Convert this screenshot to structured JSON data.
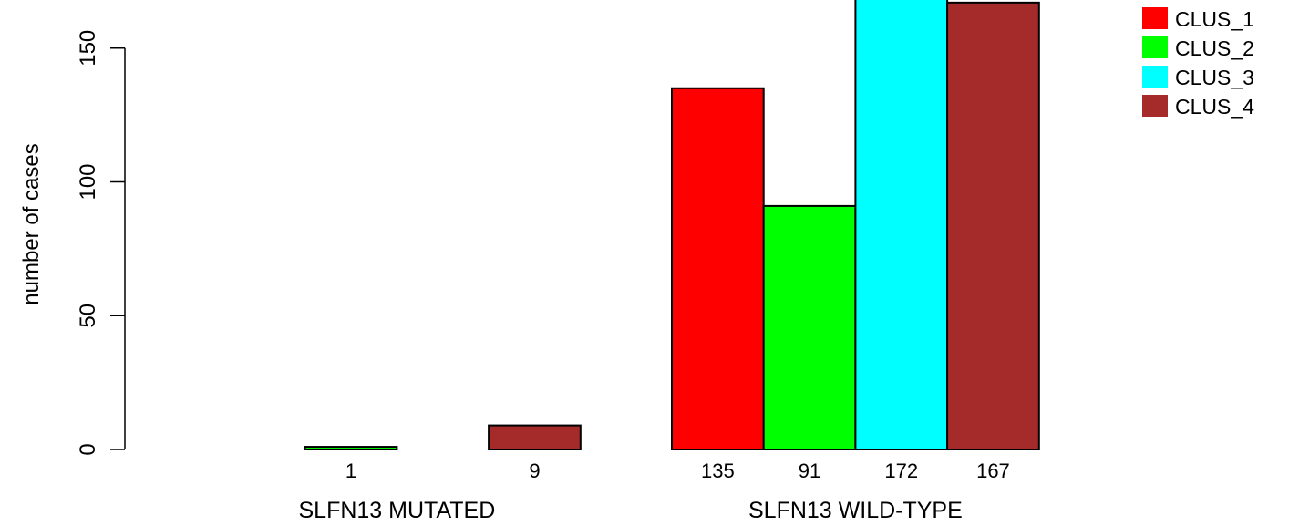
{
  "chart_data": {
    "type": "bar",
    "ylabel": "number of cases",
    "yticks": [
      0,
      50,
      100,
      150
    ],
    "ylim": [
      0,
      172
    ],
    "groups": [
      {
        "label": "SLFN13 MUTATED",
        "values": [
          0,
          1,
          0,
          9
        ],
        "value_labels": [
          "",
          "1",
          "",
          "9"
        ]
      },
      {
        "label": "SLFN13 WILD-TYPE",
        "values": [
          135,
          91,
          172,
          167
        ],
        "value_labels": [
          "135",
          "91",
          "172",
          "167"
        ]
      }
    ],
    "series": [
      {
        "name": "CLUS_1",
        "color": "#ff0000"
      },
      {
        "name": "CLUS_2",
        "color": "#00ff00"
      },
      {
        "name": "CLUS_3",
        "color": "#00ffff"
      },
      {
        "name": "CLUS_4",
        "color": "#a52a2a"
      }
    ],
    "legend_position": "top-right"
  }
}
